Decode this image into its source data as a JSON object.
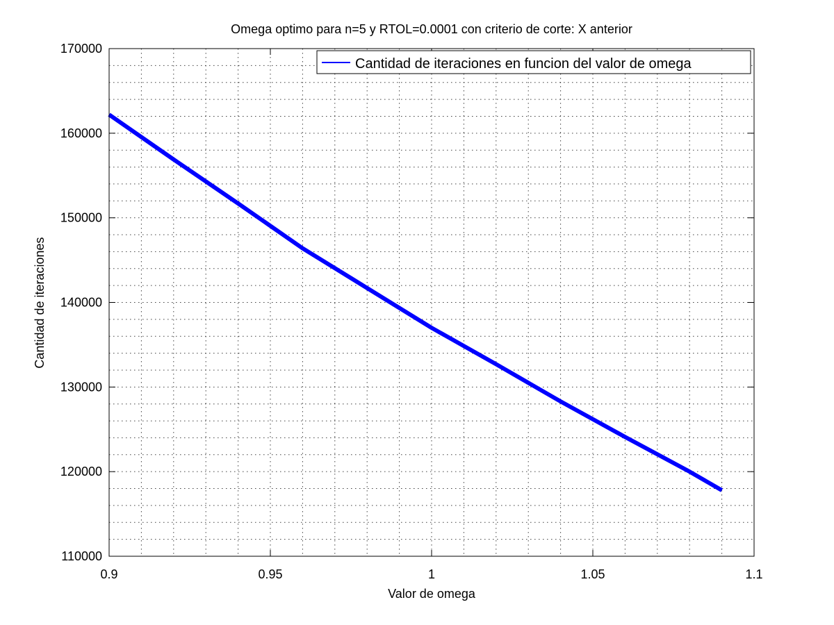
{
  "chart_data": {
    "type": "line",
    "title": "Omega optimo para n=5 y RTOL=0.0001 con criterio de corte: X anterior",
    "xlabel": "Valor de omega",
    "ylabel": "Cantidad de iteraciones",
    "xlim": [
      0.9,
      1.1
    ],
    "ylim": [
      110000,
      170000
    ],
    "xticks": [
      0.9,
      0.95,
      1,
      1.05,
      1.1
    ],
    "xtick_labels": [
      "0.9",
      "0.95",
      "1",
      "1.05",
      "1.1"
    ],
    "yticks": [
      110000,
      120000,
      130000,
      140000,
      150000,
      160000,
      170000
    ],
    "ytick_labels": [
      "110000",
      "120000",
      "130000",
      "140000",
      "150000",
      "160000",
      "170000"
    ],
    "x_minor_step": 0.01,
    "y_minor_step": 2000,
    "grid": true,
    "grid_style": "dotted",
    "legend_position": "top-right",
    "series": [
      {
        "name": "Cantidad de iteraciones en funcion del valor de omega",
        "color": "#0000ff",
        "x": [
          0.9,
          0.92,
          0.94,
          0.96,
          0.98,
          1.0,
          1.02,
          1.04,
          1.06,
          1.08,
          1.09
        ],
        "y": [
          162200,
          156900,
          151700,
          146400,
          141700,
          137000,
          132700,
          128300,
          124100,
          120000,
          117800
        ]
      }
    ]
  }
}
